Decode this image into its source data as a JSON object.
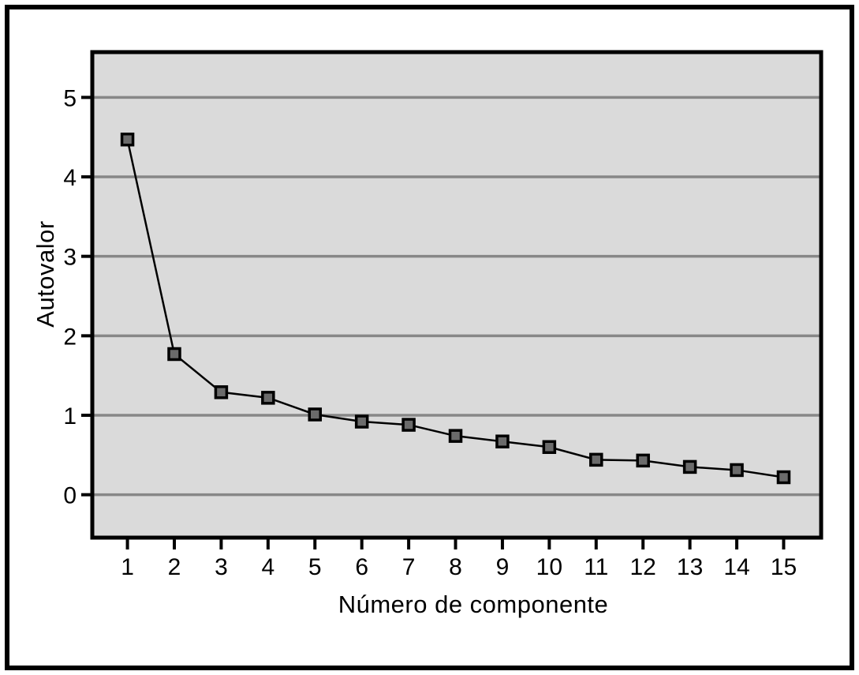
{
  "chart_data": {
    "type": "line",
    "title": "",
    "xlabel": "Número de componente",
    "ylabel": "Autovalor",
    "x": [
      1,
      2,
      3,
      4,
      5,
      6,
      7,
      8,
      9,
      10,
      11,
      12,
      13,
      14,
      15
    ],
    "values": [
      4.47,
      1.77,
      1.29,
      1.22,
      1.01,
      0.92,
      0.88,
      0.74,
      0.67,
      0.6,
      0.44,
      0.43,
      0.35,
      0.31,
      0.22
    ],
    "series_name": "Autovalor",
    "x_tick_labels": [
      "1",
      "2",
      "3",
      "4",
      "5",
      "6",
      "7",
      "8",
      "9",
      "10",
      "11",
      "12",
      "13",
      "14",
      "15"
    ],
    "y_tick_values": [
      0,
      1,
      2,
      3,
      4,
      5
    ],
    "y_tick_labels": [
      "0",
      "1",
      "2",
      "3",
      "4",
      "5"
    ],
    "xlim": [
      0.25,
      15.8
    ],
    "ylim": [
      -0.54,
      5.57
    ],
    "grid": "horizontal-only",
    "legend": "none",
    "marker": "filled-square",
    "colors": {
      "page_background": "#ffffff",
      "plot_background": "#dadada",
      "gridline": "#878787",
      "series_line": "#000000",
      "marker_fill": "#6b6b6b",
      "marker_stroke": "#000000",
      "axis_frame": "#000000",
      "tick": "#000000",
      "text": "#000000"
    }
  }
}
